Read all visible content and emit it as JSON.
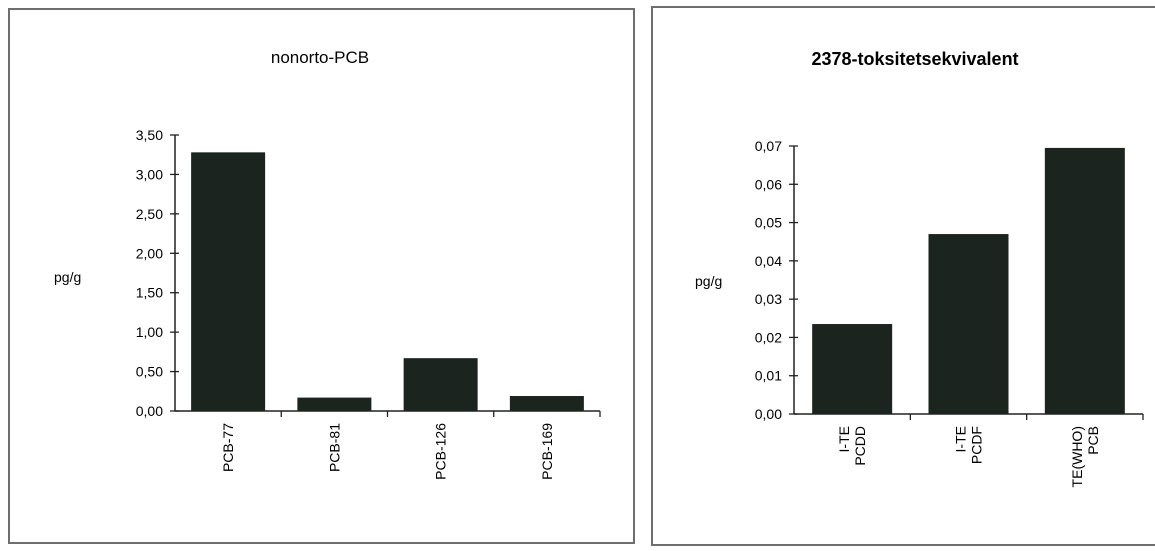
{
  "chart_data": [
    {
      "type": "bar",
      "title": "nonorto-PCB",
      "ylabel": "pg/g",
      "categories": [
        "PCB-77",
        "PCB-81",
        "PCB-126",
        "PCB-169"
      ],
      "values": [
        3.28,
        0.17,
        0.67,
        0.19
      ],
      "ylim": [
        0,
        3.5
      ],
      "yticks": [
        "0,00",
        "0,50",
        "1,00",
        "1,50",
        "2,00",
        "2,50",
        "3,00",
        "3,50"
      ],
      "grid": false,
      "bar_color": "#1c241f"
    },
    {
      "type": "bar",
      "title": "2378-toksitetsekvivalent",
      "ylabel": "pg/g",
      "categories": [
        [
          "I-TE",
          "PCDD"
        ],
        [
          "I-TE",
          "PCDF"
        ],
        [
          "TE(WHO)",
          "PCB"
        ]
      ],
      "values": [
        0.0235,
        0.047,
        0.0695
      ],
      "ylim": [
        0,
        0.07
      ],
      "yticks": [
        "0,00",
        "0,01",
        "0,02",
        "0,03",
        "0,04",
        "0,05",
        "0,06",
        "0,07"
      ],
      "grid": false,
      "bar_color": "#1c241f"
    }
  ]
}
